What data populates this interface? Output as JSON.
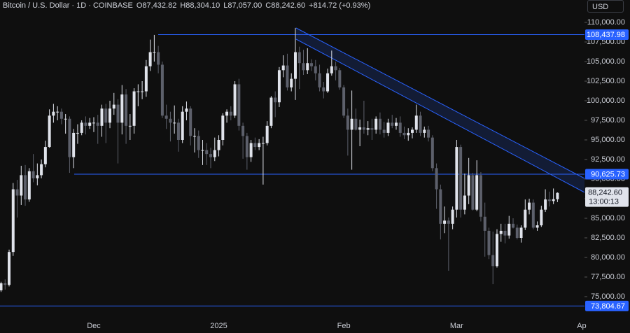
{
  "chart_data": {
    "type": "candlestick",
    "title": "Bitcoin / U.S. Dollar · 1D · COINBASE",
    "legend_values": [
      "O87,432.82",
      "H88,304.10",
      "L87,057.00",
      "C88,242.60",
      "+814.72 (+0.93%)"
    ],
    "currency": "USD",
    "up_color": "#e0e3eb",
    "down_color": "#5d606b",
    "level_color": "#2962ff",
    "categories": [
      null,
      null,
      null,
      null,
      null,
      null,
      null,
      null,
      null,
      null,
      null,
      null,
      null,
      null,
      null,
      null,
      null,
      null,
      null,
      null,
      null,
      null,
      null,
      "Dec",
      null,
      null,
      null,
      null,
      null,
      null,
      null,
      null,
      null,
      null,
      null,
      null,
      null,
      null,
      null,
      null,
      null,
      null,
      null,
      null,
      null,
      null,
      null,
      null,
      null,
      null,
      null,
      null,
      null,
      null,
      "2025",
      null,
      null,
      null,
      null,
      null,
      null,
      null,
      null,
      null,
      null,
      null,
      null,
      null,
      null,
      null,
      null,
      null,
      null,
      null,
      null,
      null,
      null,
      null,
      null,
      null,
      null,
      null,
      null,
      null,
      null,
      "Feb",
      null,
      null,
      null,
      null,
      null,
      null,
      null,
      null,
      null,
      null,
      null,
      null,
      null,
      null,
      null,
      null,
      null,
      null,
      null,
      null,
      null,
      null,
      null,
      null,
      null,
      null,
      null,
      "Mar",
      null,
      null,
      null,
      null,
      null,
      null,
      null,
      null,
      null,
      null,
      null,
      null,
      null,
      null,
      null,
      null,
      null,
      null,
      null,
      null,
      null,
      null,
      null,
      null,
      null,
      null,
      null,
      null,
      null,
      null,
      "Ap"
    ],
    "open": [
      75800,
      76700,
      76500,
      80700,
      88700,
      87900,
      90500,
      87400,
      91000,
      90100,
      90500,
      91900,
      94100,
      98100,
      98600,
      98600,
      97700,
      97700,
      92800,
      95900,
      95900,
      97200,
      96800,
      97200,
      97200,
      96800,
      99000,
      97200,
      99000,
      99500,
      97200,
      100800,
      96800,
      96800,
      101200,
      101200,
      101200,
      104400,
      106200,
      106200,
      104600,
      98100,
      97700,
      97200,
      97200,
      95000,
      98600,
      99000,
      95500,
      95500,
      93700,
      93700,
      93200,
      92800,
      93700,
      95000,
      98100,
      98600,
      98100,
      102100,
      96800,
      95500,
      92800,
      94600,
      94100,
      94600,
      94600,
      96800,
      100400,
      99800,
      103900,
      104500,
      101700,
      102800,
      106200,
      104800,
      103900,
      104800,
      104400,
      103500,
      101700,
      101200,
      103500,
      104400,
      103900,
      101700,
      98100,
      96300,
      97700,
      96300,
      96600,
      96300,
      96500,
      96300,
      97700,
      96300,
      95900,
      97200,
      96800,
      97200,
      95900,
      95600,
      95900,
      96300,
      98100,
      95900,
      96300,
      95300,
      91400,
      88700,
      84300,
      84700,
      84300,
      86100,
      94100,
      86100,
      87900,
      90500,
      86100,
      90500,
      85200,
      83400,
      80300,
      78900,
      83000,
      83400,
      82800,
      84300,
      83800,
      82500,
      83800,
      86100,
      87000,
      83800,
      84100,
      86100,
      87400,
      87200,
      87432.82,
      null,
      null,
      null,
      null,
      null,
      null
    ],
    "high": [
      76900,
      77200,
      81000,
      89500,
      89900,
      91700,
      91800,
      91400,
      93200,
      92000,
      92500,
      94900,
      98900,
      99600,
      99300,
      99000,
      98300,
      98000,
      96400,
      97000,
      97500,
      98000,
      97800,
      97900,
      98200,
      99500,
      99600,
      100000,
      101000,
      100200,
      102000,
      101500,
      98300,
      101600,
      102100,
      102500,
      105200,
      107800,
      108400,
      107000,
      105000,
      99500,
      98600,
      99400,
      97700,
      99300,
      99900,
      99300,
      96500,
      96200,
      95000,
      94600,
      94000,
      95300,
      95600,
      98400,
      98900,
      99300,
      102500,
      102800,
      97200,
      95900,
      95000,
      95300,
      95100,
      95400,
      97400,
      100600,
      101200,
      104300,
      105800,
      106000,
      103500,
      109300,
      106900,
      106500,
      106700,
      105300,
      105200,
      104600,
      102400,
      104100,
      106400,
      105000,
      104200,
      102000,
      99000,
      101300,
      99000,
      97600,
      100000,
      97400,
      97700,
      98000,
      98500,
      97300,
      97700,
      98200,
      97800,
      98000,
      96700,
      96500,
      96600,
      99500,
      98600,
      96700,
      96800,
      95600,
      92000,
      89300,
      86500,
      85100,
      86500,
      95000,
      94400,
      90700,
      92700,
      90800,
      92400,
      90900,
      87000,
      83800,
      83300,
      83600,
      84300,
      84300,
      85300,
      85000,
      84200,
      84100,
      87400,
      87500,
      87400,
      84600,
      86600,
      88700,
      88400,
      88800,
      88304.1,
      null,
      null,
      null,
      null,
      null,
      null
    ],
    "low": [
      75600,
      75900,
      76300,
      80200,
      85100,
      86700,
      86600,
      87100,
      89600,
      89200,
      90100,
      91500,
      94000,
      97200,
      97500,
      97000,
      95800,
      90800,
      91400,
      94500,
      95600,
      95700,
      96400,
      96000,
      94500,
      95400,
      94600,
      96500,
      98200,
      92000,
      95700,
      94500,
      95000,
      95800,
      99300,
      100200,
      100500,
      103800,
      105000,
      103500,
      97800,
      96400,
      94800,
      95800,
      93500,
      94600,
      97500,
      94300,
      93400,
      92700,
      91800,
      91800,
      91400,
      92300,
      92900,
      94300,
      97200,
      97500,
      97800,
      96200,
      92600,
      91200,
      92200,
      93700,
      93700,
      89300,
      94300,
      96500,
      97900,
      99200,
      103000,
      101300,
      101200,
      100100,
      101500,
      103300,
      103400,
      103800,
      102600,
      101200,
      100300,
      101000,
      103200,
      102600,
      101400,
      97800,
      93000,
      91200,
      96200,
      94200,
      95800,
      95600,
      95000,
      95800,
      95700,
      95300,
      95500,
      96500,
      96300,
      95400,
      95100,
      94900,
      95200,
      95900,
      95500,
      95300,
      94800,
      91000,
      86200,
      82300,
      83100,
      78300,
      83600,
      85100,
      85100,
      85500,
      86800,
      86000,
      85900,
      84600,
      80100,
      79800,
      76600,
      78700,
      82000,
      81800,
      82400,
      83700,
      82300,
      81900,
      83500,
      85500,
      83600,
      83400,
      83900,
      85800,
      86500,
      86800,
      87057.0,
      null,
      null,
      null,
      null,
      null,
      null
    ],
    "close": [
      76700,
      76500,
      80700,
      88700,
      87900,
      90500,
      87400,
      91000,
      90100,
      90500,
      91900,
      94100,
      98100,
      98600,
      98600,
      97700,
      97700,
      92800,
      95900,
      95900,
      97200,
      96800,
      97200,
      97200,
      96800,
      99000,
      97200,
      99000,
      99500,
      97200,
      100800,
      96800,
      96800,
      101200,
      101200,
      101200,
      104400,
      106200,
      106200,
      104600,
      98100,
      97700,
      97200,
      97200,
      95000,
      98600,
      99000,
      95500,
      95500,
      93700,
      93700,
      93200,
      92800,
      93700,
      95000,
      98100,
      98600,
      98100,
      102100,
      96800,
      95500,
      92800,
      94600,
      94100,
      94600,
      94600,
      96800,
      100400,
      99800,
      103900,
      104500,
      101700,
      102800,
      106200,
      104800,
      103900,
      104800,
      104400,
      103500,
      101700,
      101200,
      103500,
      104400,
      103900,
      101700,
      98100,
      96300,
      97700,
      96300,
      96600,
      96300,
      96500,
      96300,
      97700,
      96300,
      95900,
      97200,
      96800,
      97200,
      95900,
      95600,
      95900,
      96300,
      98100,
      95900,
      96300,
      95300,
      91400,
      88700,
      84300,
      84700,
      84300,
      86100,
      94100,
      86100,
      87900,
      90500,
      86100,
      90500,
      85200,
      83400,
      80300,
      78900,
      83000,
      83400,
      82800,
      84300,
      83800,
      82500,
      83800,
      86100,
      87000,
      83800,
      84100,
      86100,
      87400,
      87200,
      87430,
      88242.6,
      null,
      null,
      null,
      null,
      null,
      null
    ],
    "ylim": [
      72679,
      112857
    ],
    "yticks": [
      {
        "value": 75000,
        "label": "75,000.00"
      },
      {
        "value": 77500,
        "label": "77,500.00"
      },
      {
        "value": 80000,
        "label": "80,000.00"
      },
      {
        "value": 82500,
        "label": "82,500.00"
      },
      {
        "value": 85000,
        "label": "85,000.00"
      },
      {
        "value": 87500,
        "label": "87,500.00"
      },
      {
        "value": 90000,
        "label": "90,000.00"
      },
      {
        "value": 92500,
        "label": "92,500.00"
      },
      {
        "value": 95000,
        "label": "95,000.00"
      },
      {
        "value": 97500,
        "label": "97,500.00"
      },
      {
        "value": 100000,
        "label": "100,000.00"
      },
      {
        "value": 102500,
        "label": "102,500.00"
      },
      {
        "value": 105000,
        "label": "105,000.00"
      },
      {
        "value": 107500,
        "label": "107,500.00"
      },
      {
        "value": 110000,
        "label": "110,000.00"
      }
    ],
    "levels": [
      {
        "value": 108437.98,
        "label": "108,437.98"
      },
      {
        "value": 90625.73,
        "label": "90,625.73"
      },
      {
        "value": 73804.67,
        "label": "73,804.67"
      }
    ],
    "last_price": {
      "label": "88,242.60",
      "countdown": "13:00:13"
    }
  }
}
